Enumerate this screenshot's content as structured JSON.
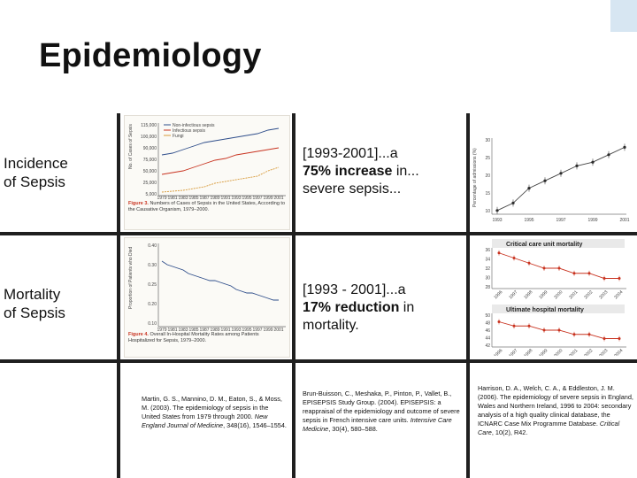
{
  "slide": {
    "title": "Epidemiology",
    "rows": [
      {
        "label_line1": "Incidence",
        "label_line2": "of Sepsis"
      },
      {
        "label_line1": "Mortality",
        "label_line2": "of Sepsis"
      }
    ],
    "statements": {
      "incidence": {
        "pre": "[1993-2001]...a",
        "bold": "75% increase",
        "post": " in...",
        "line3": "severe sepsis..."
      },
      "mortality": {
        "pre": "[1993 - 2001]...a",
        "bold": "17% reduction",
        "post": " in",
        "line3": "mortality."
      }
    },
    "figures": {
      "martin_top": {
        "y_ticks": [
          "115,000",
          "100,000",
          "90,000",
          "75,000",
          "50,000",
          "25,000",
          "5,000"
        ],
        "legend": [
          "Non-infectious sepsis",
          "Infectious sepsis",
          "Fungi"
        ],
        "x_ticks": [
          "1979",
          "1981",
          "1983",
          "1985",
          "1987",
          "1989",
          "1991",
          "1993",
          "1995",
          "1997",
          "1999",
          "2001"
        ],
        "caption_label": "Figure 3.",
        "caption_text": "Numbers of Cases of Sepsis in the United States, According to the Causative Organism, 1979–2000."
      },
      "martin_bottom": {
        "y_ticks": [
          "0.40",
          "0.30",
          "0.25",
          "0.20",
          "0.10"
        ],
        "x_ticks": [
          "1979",
          "1981",
          "1983",
          "1985",
          "1987",
          "1989",
          "1991",
          "1993",
          "1995",
          "1997",
          "1999",
          "2001"
        ],
        "caption_label": "Figure 4.",
        "caption_text": "Overall In-Hospital Mortality Rates among Patients Hospitalized for Sepsis, 1979–2000."
      },
      "french_incidence": {
        "y_ticks": [
          "30",
          "25",
          "20",
          "15",
          "10"
        ],
        "x_ticks": [
          "1993",
          "1995",
          "1997",
          "1999",
          "2001"
        ],
        "ylabel": "Percentage of admissions (%)",
        "chart_data": {
          "type": "line",
          "x": [
            1993,
            1994,
            1995,
            1996,
            1997,
            1998,
            1999,
            2000,
            2001
          ],
          "values": [
            11,
            13,
            17,
            19,
            21,
            23,
            24,
            26,
            28
          ]
        }
      },
      "icnarc": {
        "panel1_title": "Critical care unit mortality",
        "panel2_title": "Ultimate hospital mortality",
        "panel1_y": [
          "36",
          "34",
          "32",
          "30",
          "28"
        ],
        "panel2_y": [
          "50",
          "48",
          "46",
          "44",
          "42"
        ],
        "x_ticks": [
          "1996",
          "1997",
          "1998",
          "1999",
          "2000",
          "2001",
          "2002",
          "2003",
          "2004"
        ],
        "panel1_values": [
          35,
          34,
          33,
          32,
          32,
          31,
          31,
          30,
          30
        ],
        "panel2_values": [
          48,
          47,
          47,
          46,
          46,
          45,
          45,
          44,
          44
        ]
      }
    },
    "references": {
      "martin": {
        "authors": "Martin, G. S., Mannino, D. M., Eaton, S., & Moss, M. (2003). The epidemiology of sepsis in the United States from 1979 through 2000.",
        "journal": "New England Journal of Medicine",
        "rest": ", 348(16), 1546–1554."
      },
      "brun": {
        "authors": "Brun-Buisson, C., Meshaka, P., Pinton, P., Vallet, B., EPISEPSIS Study Group. (2004). EPISEPSIS: a reappraisal of the epidemiology and outcome of severe sepsis in French intensive care units.",
        "journal": "Intensive Care Medicine",
        "rest": ", 30(4), 580–588."
      },
      "harrison": {
        "authors": "Harrison, D. A., Welch, C. A., & Eddleston, J. M. (2006). The epidemiology of severe sepsis in England, Wales and Northern Ireland, 1996 to 2004: secondary analysis of a high quality clinical database, the ICNARC Case Mix Programme Database.",
        "journal": "Critical Care",
        "rest": ", 10(2), R42."
      }
    },
    "colors": {
      "grid": "#1f1f1f",
      "accent_red": "#c8321f",
      "accent_blue": "#2e4d8a"
    }
  }
}
